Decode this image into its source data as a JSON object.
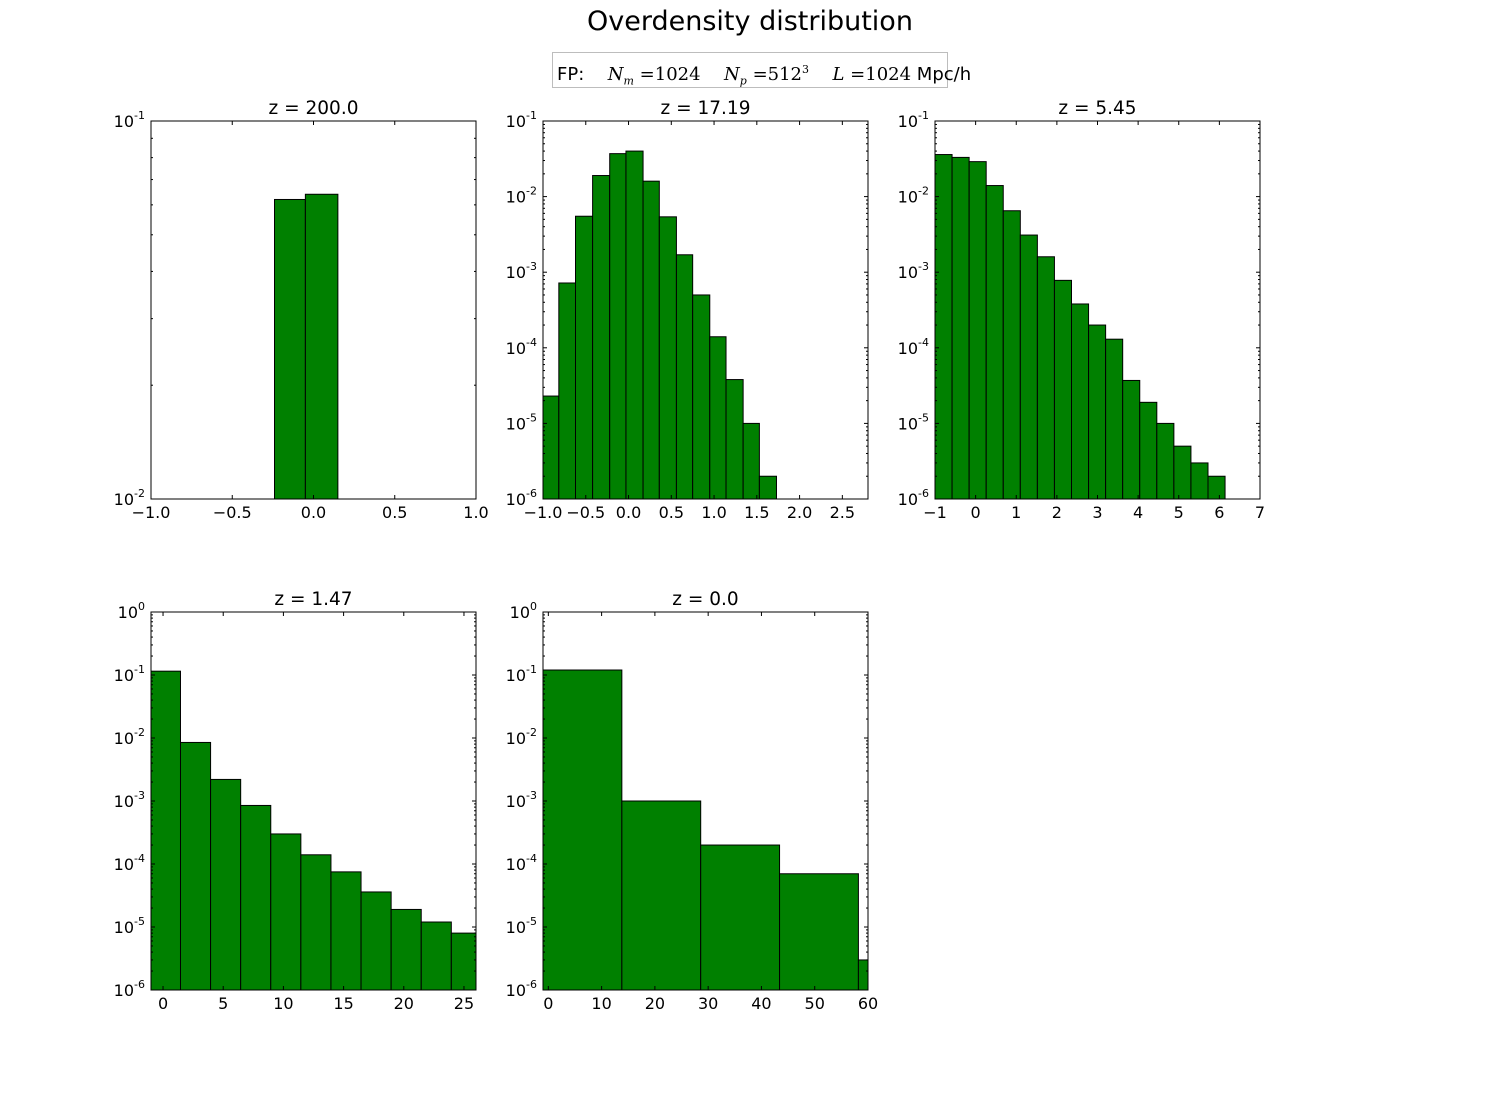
{
  "figure": {
    "title": "Overdensity distribution",
    "legend": {
      "prefix": "FP:",
      "nm_symbol": "N",
      "nm_sub": "m",
      "nm_value": "=1024",
      "np_symbol": "N",
      "np_sub": "p",
      "np_value": "=512",
      "np_exp": "3",
      "l_symbol": "L",
      "l_value": "=1024",
      "unit": "Mpc/h"
    }
  },
  "colors": {
    "bar_fill": "#008000",
    "bar_edge": "#000000",
    "frame": "#000000"
  },
  "chart_data": [
    {
      "type": "bar",
      "title": "z = 200.0",
      "yscale": "log",
      "xlim": [
        -1.0,
        1.0
      ],
      "ylim": [
        0.01,
        0.1
      ],
      "xticks": [
        {
          "v": -1.0,
          "label": "−1.0"
        },
        {
          "v": -0.5,
          "label": "−0.5"
        },
        {
          "v": 0.0,
          "label": "0.0"
        },
        {
          "v": 0.5,
          "label": "0.5"
        },
        {
          "v": 1.0,
          "label": "1.0"
        }
      ],
      "yticks": [
        {
          "exp": -2,
          "label": "10",
          "sup": "-2"
        },
        {
          "exp": -1,
          "label": "10",
          "sup": "-1"
        }
      ],
      "bin_edges": [
        -0.24,
        -0.05,
        0.15
      ],
      "values": [
        0.062,
        0.064
      ]
    },
    {
      "type": "bar",
      "title": "z = 17.19",
      "yscale": "log",
      "xlim": [
        -1.0,
        2.8
      ],
      "ylim": [
        1e-06,
        0.1
      ],
      "xticks": [
        {
          "v": -1.0,
          "label": "−1.0"
        },
        {
          "v": -0.5,
          "label": "−0.5"
        },
        {
          "v": 0.0,
          "label": "0.0"
        },
        {
          "v": 0.5,
          "label": "0.5"
        },
        {
          "v": 1.0,
          "label": "1.0"
        },
        {
          "v": 1.5,
          "label": "1.5"
        },
        {
          "v": 2.0,
          "label": "2.0"
        },
        {
          "v": 2.5,
          "label": "2.5"
        }
      ],
      "yticks": [
        {
          "exp": -6,
          "label": "10",
          "sup": "-6"
        },
        {
          "exp": -5,
          "label": "10",
          "sup": "-5"
        },
        {
          "exp": -4,
          "label": "10",
          "sup": "-4"
        },
        {
          "exp": -3,
          "label": "10",
          "sup": "-3"
        },
        {
          "exp": -2,
          "label": "10",
          "sup": "-2"
        },
        {
          "exp": -1,
          "label": "10",
          "sup": "-1"
        }
      ],
      "bin_edges": [
        -1.0,
        -0.815,
        -0.62,
        -0.42,
        -0.22,
        -0.03,
        0.17,
        0.36,
        0.56,
        0.75,
        0.95,
        1.14,
        1.34,
        1.53,
        1.73
      ],
      "values": [
        2.3e-05,
        0.00072,
        0.0055,
        0.019,
        0.037,
        0.04,
        0.016,
        0.0054,
        0.0017,
        0.0005,
        0.00014,
        3.8e-05,
        1e-05,
        2e-06
      ]
    },
    {
      "type": "bar",
      "title": "z = 5.45",
      "yscale": "log",
      "xlim": [
        -1,
        7
      ],
      "ylim": [
        1e-06,
        0.1
      ],
      "xticks": [
        {
          "v": -1,
          "label": "−1"
        },
        {
          "v": 0,
          "label": "0"
        },
        {
          "v": 1,
          "label": "1"
        },
        {
          "v": 2,
          "label": "2"
        },
        {
          "v": 3,
          "label": "3"
        },
        {
          "v": 4,
          "label": "4"
        },
        {
          "v": 5,
          "label": "5"
        },
        {
          "v": 6,
          "label": "6"
        },
        {
          "v": 7,
          "label": "7"
        }
      ],
      "yticks": [
        {
          "exp": -6,
          "label": "10",
          "sup": "-6"
        },
        {
          "exp": -5,
          "label": "10",
          "sup": "-5"
        },
        {
          "exp": -4,
          "label": "10",
          "sup": "-4"
        },
        {
          "exp": -3,
          "label": "10",
          "sup": "-3"
        },
        {
          "exp": -2,
          "label": "10",
          "sup": "-2"
        },
        {
          "exp": -1,
          "label": "10",
          "sup": "-1"
        }
      ],
      "bin_edges": [
        -1.0,
        -0.58,
        -0.16,
        0.26,
        0.68,
        1.1,
        1.52,
        1.94,
        2.36,
        2.78,
        3.2,
        3.62,
        4.04,
        4.46,
        4.88,
        5.3,
        5.72,
        6.14
      ],
      "values": [
        0.036,
        0.033,
        0.029,
        0.014,
        0.0065,
        0.0031,
        0.0016,
        0.00078,
        0.00038,
        0.0002,
        0.00013,
        3.7e-05,
        1.9e-05,
        1e-05,
        5e-06,
        3e-06,
        2e-06
      ]
    },
    {
      "type": "bar",
      "title": "z = 1.47",
      "yscale": "log",
      "xlim": [
        -1.0,
        26.0
      ],
      "ylim": [
        1e-06,
        1
      ],
      "xticks": [
        {
          "v": 0,
          "label": "0"
        },
        {
          "v": 5,
          "label": "5"
        },
        {
          "v": 10,
          "label": "10"
        },
        {
          "v": 15,
          "label": "15"
        },
        {
          "v": 20,
          "label": "20"
        },
        {
          "v": 25,
          "label": "25"
        }
      ],
      "yticks": [
        {
          "exp": -6,
          "label": "10",
          "sup": "-6"
        },
        {
          "exp": -5,
          "label": "10",
          "sup": "-5"
        },
        {
          "exp": -4,
          "label": "10",
          "sup": "-4"
        },
        {
          "exp": -3,
          "label": "10",
          "sup": "-3"
        },
        {
          "exp": -2,
          "label": "10",
          "sup": "-2"
        },
        {
          "exp": -1,
          "label": "10",
          "sup": "-1"
        },
        {
          "exp": 0,
          "label": "10",
          "sup": "0"
        }
      ],
      "bin_edges": [
        -1.0,
        1.45,
        3.95,
        6.45,
        8.95,
        11.45,
        13.95,
        16.45,
        18.95,
        21.45,
        23.95,
        26.45
      ],
      "values": [
        0.115,
        0.0085,
        0.0022,
        0.00085,
        0.0003,
        0.00014,
        7.5e-05,
        3.6e-05,
        1.9e-05,
        1.2e-05,
        8e-06
      ]
    },
    {
      "type": "bar",
      "title": "z = 0.0",
      "yscale": "log",
      "xlim": [
        -1.0,
        60.0
      ],
      "ylim": [
        1e-06,
        1
      ],
      "xticks": [
        {
          "v": 0,
          "label": "0"
        },
        {
          "v": 10,
          "label": "10"
        },
        {
          "v": 20,
          "label": "20"
        },
        {
          "v": 30,
          "label": "30"
        },
        {
          "v": 40,
          "label": "40"
        },
        {
          "v": 50,
          "label": "50"
        },
        {
          "v": 60,
          "label": "60"
        }
      ],
      "yticks": [
        {
          "exp": -6,
          "label": "10",
          "sup": "-6"
        },
        {
          "exp": -5,
          "label": "10",
          "sup": "-5"
        },
        {
          "exp": -4,
          "label": "10",
          "sup": "-4"
        },
        {
          "exp": -3,
          "label": "10",
          "sup": "-3"
        },
        {
          "exp": -2,
          "label": "10",
          "sup": "-2"
        },
        {
          "exp": -1,
          "label": "10",
          "sup": "-1"
        },
        {
          "exp": 0,
          "label": "10",
          "sup": "0"
        }
      ],
      "bin_edges": [
        -1.0,
        13.8,
        28.6,
        43.4,
        58.2,
        73.0
      ],
      "values": [
        0.12,
        0.001,
        0.0002,
        7e-05,
        3e-06
      ]
    }
  ]
}
